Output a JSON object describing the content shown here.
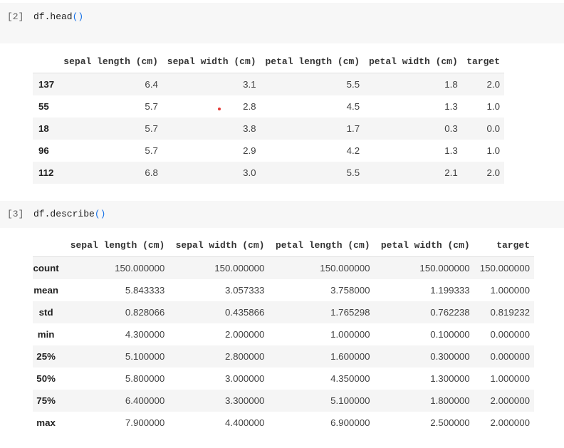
{
  "cell1": {
    "prompt": "[2]",
    "code_prefix": "df.head",
    "code_parens": "()",
    "table": {
      "columns": [
        "sepal length (cm)",
        "sepal width (cm)",
        "petal length (cm)",
        "petal width (cm)",
        "target"
      ],
      "rows": [
        {
          "index": "137",
          "values": [
            "6.4",
            "3.1",
            "5.5",
            "1.8",
            "2.0"
          ]
        },
        {
          "index": "55",
          "values": [
            "5.7",
            "2.8",
            "4.5",
            "1.3",
            "1.0"
          ]
        },
        {
          "index": "18",
          "values": [
            "5.7",
            "3.8",
            "1.7",
            "0.3",
            "0.0"
          ]
        },
        {
          "index": "96",
          "values": [
            "5.7",
            "2.9",
            "4.2",
            "1.3",
            "1.0"
          ]
        },
        {
          "index": "112",
          "values": [
            "6.8",
            "3.0",
            "5.5",
            "2.1",
            "2.0"
          ]
        }
      ]
    }
  },
  "cell2": {
    "prompt": "[3]",
    "code_prefix": "df.describe",
    "code_parens": "()",
    "table": {
      "columns": [
        "sepal length (cm)",
        "sepal width (cm)",
        "petal length (cm)",
        "petal width (cm)",
        "target"
      ],
      "rows": [
        {
          "index": "count",
          "values": [
            "150.000000",
            "150.000000",
            "150.000000",
            "150.000000",
            "150.000000"
          ]
        },
        {
          "index": "mean",
          "values": [
            "5.843333",
            "3.057333",
            "3.758000",
            "1.199333",
            "1.000000"
          ]
        },
        {
          "index": "std",
          "values": [
            "0.828066",
            "0.435866",
            "1.765298",
            "0.762238",
            "0.819232"
          ]
        },
        {
          "index": "min",
          "values": [
            "4.300000",
            "2.000000",
            "1.000000",
            "0.100000",
            "0.000000"
          ]
        },
        {
          "index": "25%",
          "values": [
            "5.100000",
            "2.800000",
            "1.600000",
            "0.300000",
            "0.000000"
          ]
        },
        {
          "index": "50%",
          "values": [
            "5.800000",
            "3.000000",
            "4.350000",
            "1.300000",
            "1.000000"
          ]
        },
        {
          "index": "75%",
          "values": [
            "6.400000",
            "3.300000",
            "5.100000",
            "1.800000",
            "2.000000"
          ]
        },
        {
          "index": "max",
          "values": [
            "7.900000",
            "4.400000",
            "6.900000",
            "2.500000",
            "2.000000"
          ]
        }
      ]
    }
  },
  "colors": {
    "cell_background": "#f7f7f7",
    "striped_row": "#f5f5f5",
    "paren_blue": "#1a73e8",
    "marker_red": "#e53935"
  }
}
